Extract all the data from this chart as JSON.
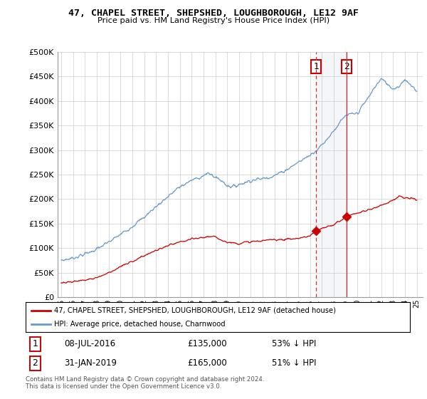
{
  "title": "47, CHAPEL STREET, SHEPSHED, LOUGHBOROUGH, LE12 9AF",
  "subtitle": "Price paid vs. HM Land Registry's House Price Index (HPI)",
  "legend_line1": "47, CHAPEL STREET, SHEPSHED, LOUGHBOROUGH, LE12 9AF (detached house)",
  "legend_line2": "HPI: Average price, detached house, Charnwood",
  "annotation1_label": "1",
  "annotation1_date": "08-JUL-2016",
  "annotation1_price": "£135,000",
  "annotation1_hpi": "53% ↓ HPI",
  "annotation2_label": "2",
  "annotation2_date": "31-JAN-2019",
  "annotation2_price": "£165,000",
  "annotation2_hpi": "51% ↓ HPI",
  "footer": "Contains HM Land Registry data © Crown copyright and database right 2024.\nThis data is licensed under the Open Government Licence v3.0.",
  "hpi_color": "#6699cc",
  "price_color": "#cc0000",
  "ylim": [
    0,
    500000
  ],
  "yticks": [
    0,
    50000,
    100000,
    150000,
    200000,
    250000,
    300000,
    350000,
    400000,
    450000,
    500000
  ],
  "sale1_year": 2016.52,
  "sale1_price": 135000,
  "sale2_year": 2019.08,
  "sale2_price": 165000,
  "hpi_anchors_x": [
    1995,
    1996,
    1997,
    1998,
    1999,
    2000,
    2001,
    2002,
    2003,
    2004,
    2005,
    2006,
    2007,
    2007.5,
    2008,
    2008.5,
    2009,
    2009.5,
    2010,
    2011,
    2012,
    2013,
    2014,
    2015,
    2016,
    2017,
    2017.5,
    2018,
    2018.5,
    2019,
    2020,
    2021,
    2021.5,
    2022,
    2022.5,
    2023,
    2023.5,
    2024,
    2024.5,
    2025
  ],
  "hpi_anchors_y": [
    75000,
    80000,
    88000,
    98000,
    112000,
    128000,
    145000,
    163000,
    185000,
    205000,
    225000,
    238000,
    248000,
    252000,
    245000,
    238000,
    228000,
    225000,
    230000,
    238000,
    242000,
    248000,
    260000,
    275000,
    290000,
    310000,
    325000,
    340000,
    355000,
    370000,
    375000,
    410000,
    430000,
    445000,
    435000,
    425000,
    430000,
    445000,
    430000,
    420000
  ],
  "red_anchors_x": [
    1995,
    1996,
    1997,
    1998,
    1999,
    2000,
    2001,
    2002,
    2003,
    2004,
    2005,
    2006,
    2007,
    2007.5,
    2008,
    2008.5,
    2009,
    2010,
    2011,
    2012,
    2013,
    2014,
    2015,
    2016,
    2016.52,
    2017,
    2018,
    2019.08,
    2020,
    2021,
    2022,
    2023,
    2023.5,
    2024,
    2025
  ],
  "red_anchors_y": [
    30000,
    32000,
    35000,
    40000,
    50000,
    62000,
    73000,
    85000,
    95000,
    105000,
    112000,
    118000,
    122000,
    124000,
    122000,
    118000,
    112000,
    110000,
    113000,
    115000,
    118000,
    118000,
    120000,
    125000,
    135000,
    140000,
    148000,
    165000,
    172000,
    178000,
    188000,
    198000,
    205000,
    202000,
    200000
  ]
}
